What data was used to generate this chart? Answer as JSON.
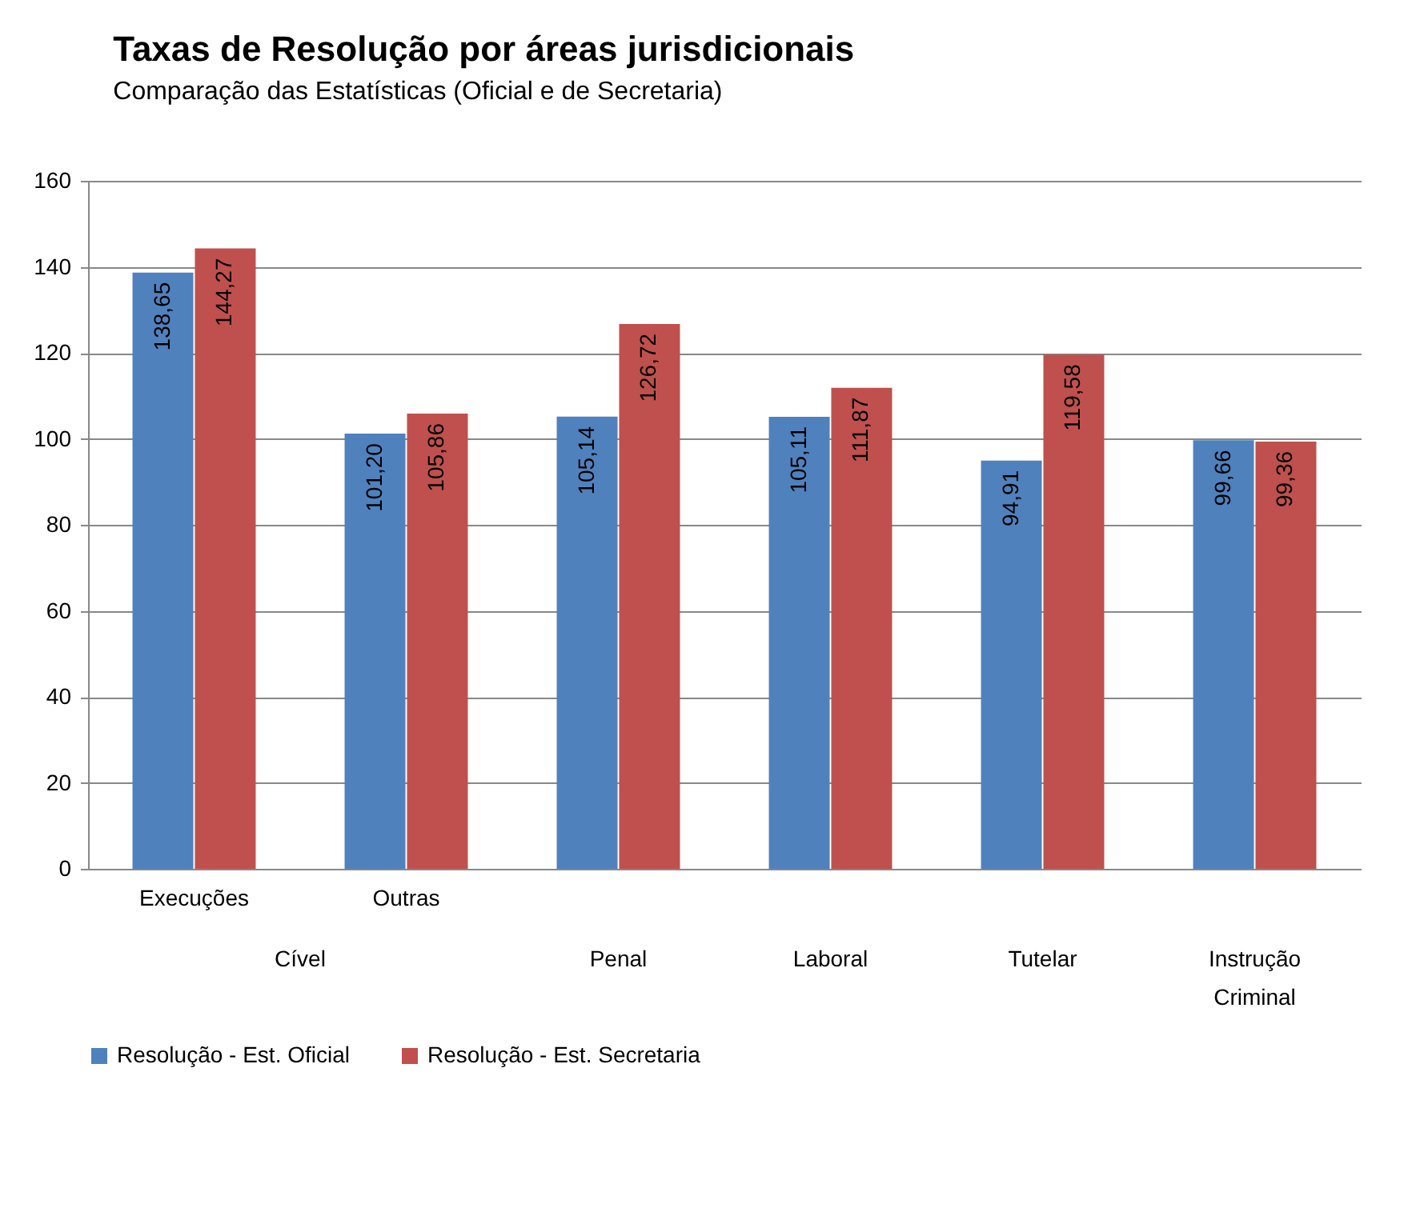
{
  "chart_data": {
    "type": "bar",
    "title": "Taxas de Resolução por áreas jurisdicionais",
    "subtitle": "Comparação das Estatísticas (Oficial  e de Secretaria)",
    "categories": [
      "Execuções",
      "Outras",
      "Penal",
      "Laboral",
      "Tutelar",
      "Instrução Criminal"
    ],
    "series": [
      {
        "name": "Resolução - Est. Oficial",
        "color": "#4f81bd",
        "values": [
          138.65,
          101.2,
          105.14,
          105.11,
          94.91,
          99.66
        ],
        "value_labels": [
          "138,65",
          "101,20",
          "105,14",
          "105,11",
          "94,91",
          "99,66"
        ]
      },
      {
        "name": "Resolução - Est. Secretaria",
        "color": "#c0504d",
        "values": [
          144.27,
          105.86,
          126.72,
          111.87,
          119.58,
          99.36
        ],
        "value_labels": [
          "144,27",
          "105,86",
          "126,72",
          "111,87",
          "119,58",
          "99,36"
        ]
      }
    ],
    "annotations": [
      "Cível"
    ],
    "ylim": [
      0,
      160
    ],
    "yticks": [
      0,
      20,
      40,
      60,
      80,
      100,
      120,
      140,
      160
    ],
    "grid": "y",
    "legend": "bottom"
  }
}
